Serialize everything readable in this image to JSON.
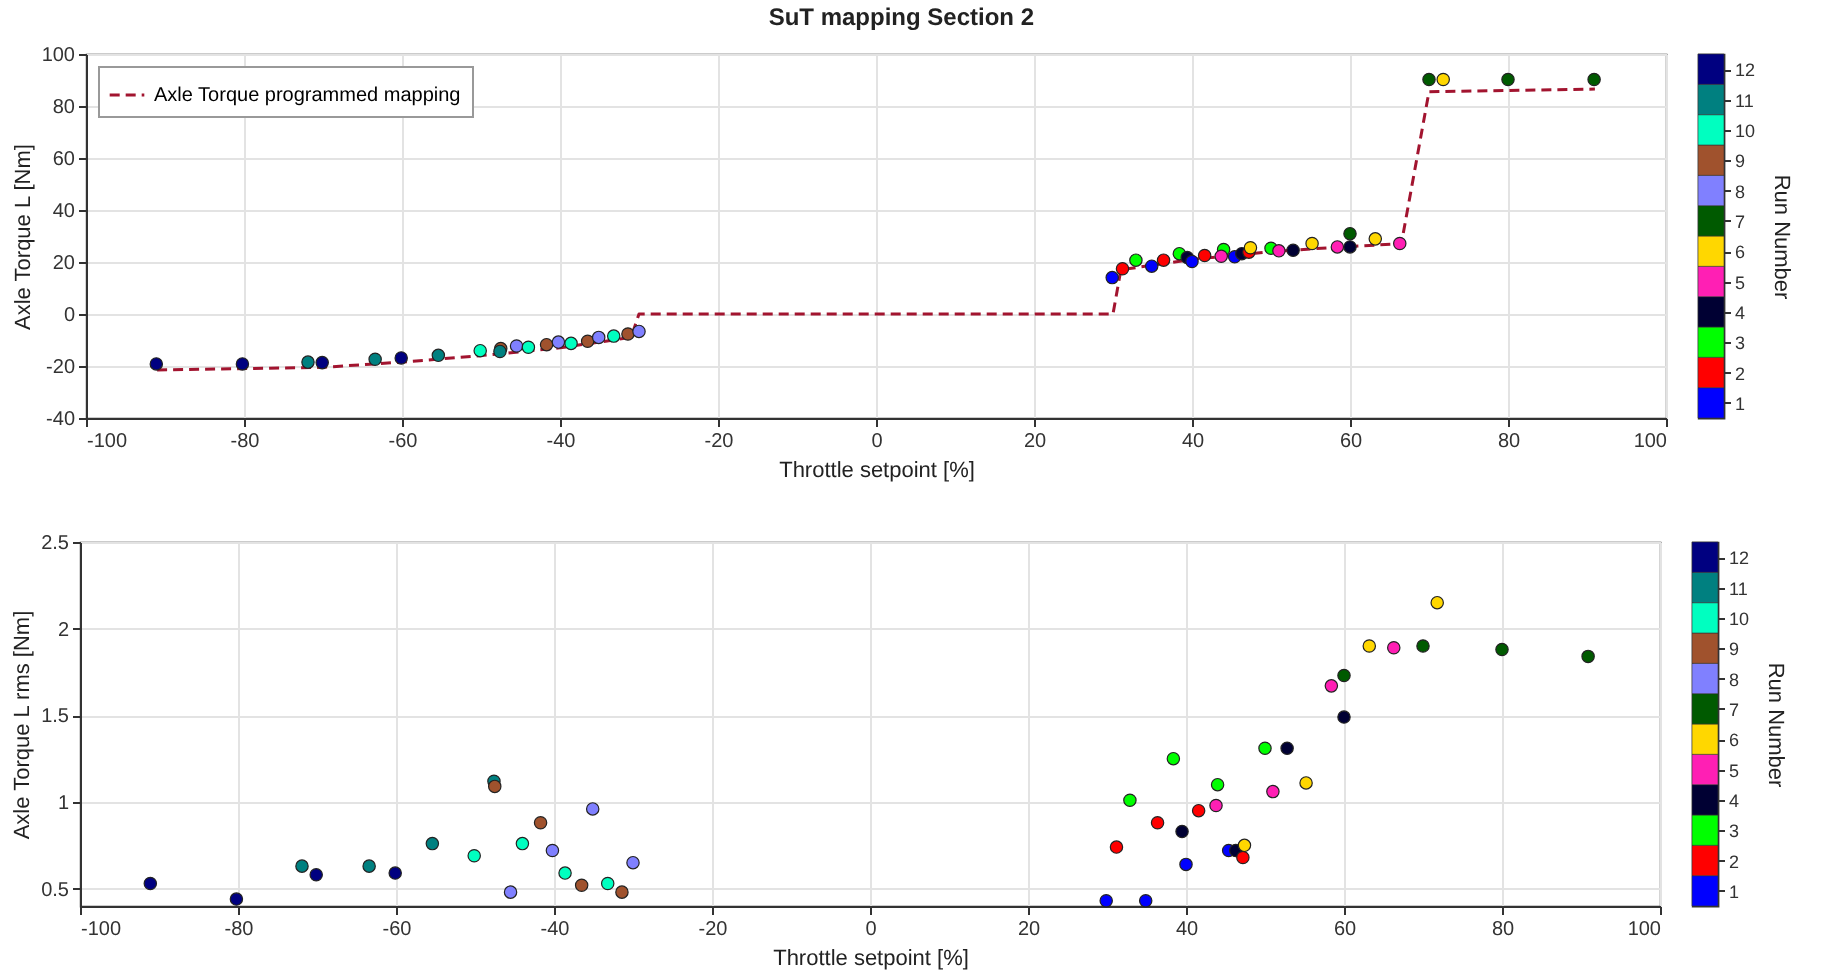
{
  "chart_data": [
    {
      "type": "scatter",
      "title": "SuT mapping Section 2",
      "xlabel": "Throttle setpoint [%]",
      "ylabel": "Axle Torque L [Nm]",
      "clabel": "Run Number",
      "xlim": [
        -100,
        100
      ],
      "xticks": [
        -100,
        -80,
        -60,
        -40,
        -20,
        0,
        20,
        40,
        60,
        80,
        100
      ],
      "ylim": [
        -40,
        100
      ],
      "yticks": [
        -40,
        -20,
        0,
        20,
        40,
        60,
        80,
        100
      ],
      "clim": [
        0.5,
        12.5
      ],
      "cticks": [
        1,
        2,
        3,
        4,
        5,
        6,
        7,
        8,
        9,
        10,
        11,
        12
      ],
      "colors": [
        "#0000ff",
        "#ff0000",
        "#00ff00",
        "#000033",
        "#ff1fb4",
        "#ffd700",
        "#005a00",
        "#8080ff",
        "#a0522d",
        "#00ffc0",
        "#008080",
        "#000080"
      ],
      "grid": true,
      "legend": "top left",
      "series": [
        {
          "type": "line",
          "name": "Axle Torque programmed mapping",
          "color": "#a2142f",
          "line_style": "dashed",
          "x": [
            -91,
            -80,
            -70,
            -60,
            -50,
            -40,
            -31,
            -30,
            30,
            31,
            40,
            50,
            60,
            66.5,
            70,
            91
          ],
          "values": [
            -21.5,
            -21,
            -20.5,
            -18.5,
            -16,
            -13,
            -9,
            0,
            0,
            17,
            21,
            24,
            26,
            27,
            85.5,
            86.5
          ]
        },
        {
          "type": "scatter",
          "marker": "circle",
          "x": [
            -91.1,
            -80.2,
            -71.9,
            -70.1,
            -63.4,
            -60.1,
            -55.4,
            -50.1,
            -47.5,
            -47.6,
            -45.5,
            -44.0,
            -41.7,
            -40.2,
            -38.6,
            -36.5,
            -35.1,
            -33.2,
            -31.4,
            -30.0,
            29.9,
            31.2,
            32.9,
            34.9,
            36.4,
            38.4,
            39.4,
            40.0,
            41.6,
            44.0,
            43.7,
            45.4,
            46.3,
            47.2,
            47.4,
            50.0,
            51.0,
            52.8,
            55.2,
            58.4,
            60.0,
            60.0,
            63.2,
            66.3,
            70.0,
            71.8,
            80.0,
            90.9
          ],
          "values": [
            -19.2,
            -19.2,
            -18.5,
            -18.7,
            -17.4,
            -16.9,
            -15.9,
            -14.1,
            -13.3,
            -14.4,
            -12.3,
            -12.8,
            -11.8,
            -10.8,
            -11.3,
            -10.5,
            -9.0,
            -8.5,
            -7.7,
            -6.7,
            14.0,
            17.4,
            20.7,
            18.4,
            20.7,
            23.2,
            21.7,
            20.2,
            22.5,
            24.8,
            22.2,
            22.0,
            23.2,
            23.8,
            25.5,
            25.3,
            24.3,
            24.5,
            27.1,
            25.8,
            30.9,
            25.8,
            28.9,
            27.1,
            90.2,
            90.2,
            90.2,
            90.2
          ],
          "colors": [
            "#000080",
            "#000080",
            "#008080",
            "#000080",
            "#008080",
            "#000080",
            "#008080",
            "#00ffc0",
            "#a0522d",
            "#008080",
            "#8080ff",
            "#00ffc0",
            "#a0522d",
            "#8080ff",
            "#00ffc0",
            "#a0522d",
            "#8080ff",
            "#00ffc0",
            "#a0522d",
            "#8080ff",
            "#0000ff",
            "#ff0000",
            "#00ff00",
            "#0000ff",
            "#ff0000",
            "#00ff00",
            "#000033",
            "#0000ff",
            "#ff0000",
            "#00ff00",
            "#ff1fb4",
            "#0000ff",
            "#000033",
            "#ff0000",
            "#ffd700",
            "#00ff00",
            "#ff1fb4",
            "#000033",
            "#ffd700",
            "#ff1fb4",
            "#005a00",
            "#000033",
            "#ffd700",
            "#ff1fb4",
            "#005a00",
            "#ffd700",
            "#005a00",
            "#005a00"
          ]
        }
      ]
    },
    {
      "type": "scatter",
      "xlabel": "Throttle setpoint [%]",
      "ylabel": "Axle Torque L rms [Nm]",
      "clabel": "Run Number",
      "xlim": [
        -100,
        100
      ],
      "xticks": [
        -100,
        -80,
        -60,
        -40,
        -20,
        0,
        20,
        40,
        60,
        80,
        100
      ],
      "ylim": [
        0.4,
        2.5
      ],
      "yticks": [
        0.5,
        {
          "value": 1,
          "label": "1"
        },
        1.5,
        {
          "value": 2,
          "label": "2"
        },
        2.5
      ],
      "clim": [
        0.5,
        12.5
      ],
      "cticks": [
        1,
        2,
        3,
        4,
        5,
        6,
        7,
        8,
        9,
        10,
        11,
        12
      ],
      "colors": [
        "#0000ff",
        "#ff0000",
        "#00ff00",
        "#000033",
        "#ff1fb4",
        "#ffd700",
        "#005a00",
        "#8080ff",
        "#a0522d",
        "#00ffc0",
        "#008080",
        "#000080"
      ],
      "grid": true,
      "marker": "circle",
      "series": [
        {
          "type": "scatter",
          "x": [
            -91.1,
            -80.2,
            -71.9,
            -70.1,
            -63.4,
            -60.1,
            -55.4,
            -50.1,
            -47.6,
            -47.5,
            -45.5,
            -44.0,
            -41.7,
            -40.2,
            -38.6,
            -36.5,
            -35.1,
            -33.2,
            -31.4,
            -30.0,
            29.9,
            31.2,
            32.9,
            34.9,
            36.4,
            38.4,
            39.5,
            40.0,
            41.6,
            44.0,
            43.8,
            45.4,
            46.3,
            47.2,
            47.4,
            50.0,
            51.0,
            52.8,
            55.2,
            58.4,
            60.0,
            60.0,
            63.2,
            66.3,
            70.0,
            71.8,
            80.0,
            90.9
          ],
          "values": [
            0.53,
            0.44,
            0.63,
            0.58,
            0.63,
            0.59,
            0.76,
            0.69,
            1.12,
            1.09,
            0.48,
            0.76,
            0.88,
            0.72,
            0.59,
            0.52,
            0.96,
            0.53,
            0.48,
            0.65,
            0.43,
            0.74,
            1.01,
            0.43,
            0.88,
            1.25,
            0.83,
            0.64,
            0.95,
            1.1,
            0.98,
            0.72,
            0.72,
            0.68,
            0.75,
            1.31,
            1.06,
            1.31,
            1.11,
            1.67,
            1.73,
            1.49,
            1.9,
            1.89,
            1.9,
            2.15,
            1.88,
            1.84
          ],
          "colors": [
            "#000080",
            "#000080",
            "#008080",
            "#000080",
            "#008080",
            "#000080",
            "#008080",
            "#00ffc0",
            "#008080",
            "#a0522d",
            "#8080ff",
            "#00ffc0",
            "#a0522d",
            "#8080ff",
            "#00ffc0",
            "#a0522d",
            "#8080ff",
            "#00ffc0",
            "#a0522d",
            "#8080ff",
            "#0000ff",
            "#ff0000",
            "#00ff00",
            "#0000ff",
            "#ff0000",
            "#00ff00",
            "#000033",
            "#0000ff",
            "#ff0000",
            "#00ff00",
            "#ff1fb4",
            "#0000ff",
            "#000033",
            "#ff0000",
            "#ffd700",
            "#00ff00",
            "#ff1fb4",
            "#000033",
            "#ffd700",
            "#ff1fb4",
            "#005a00",
            "#000033",
            "#ffd700",
            "#ff1fb4",
            "#005a00",
            "#ffd700",
            "#005a00",
            "#005a00"
          ]
        }
      ]
    }
  ]
}
